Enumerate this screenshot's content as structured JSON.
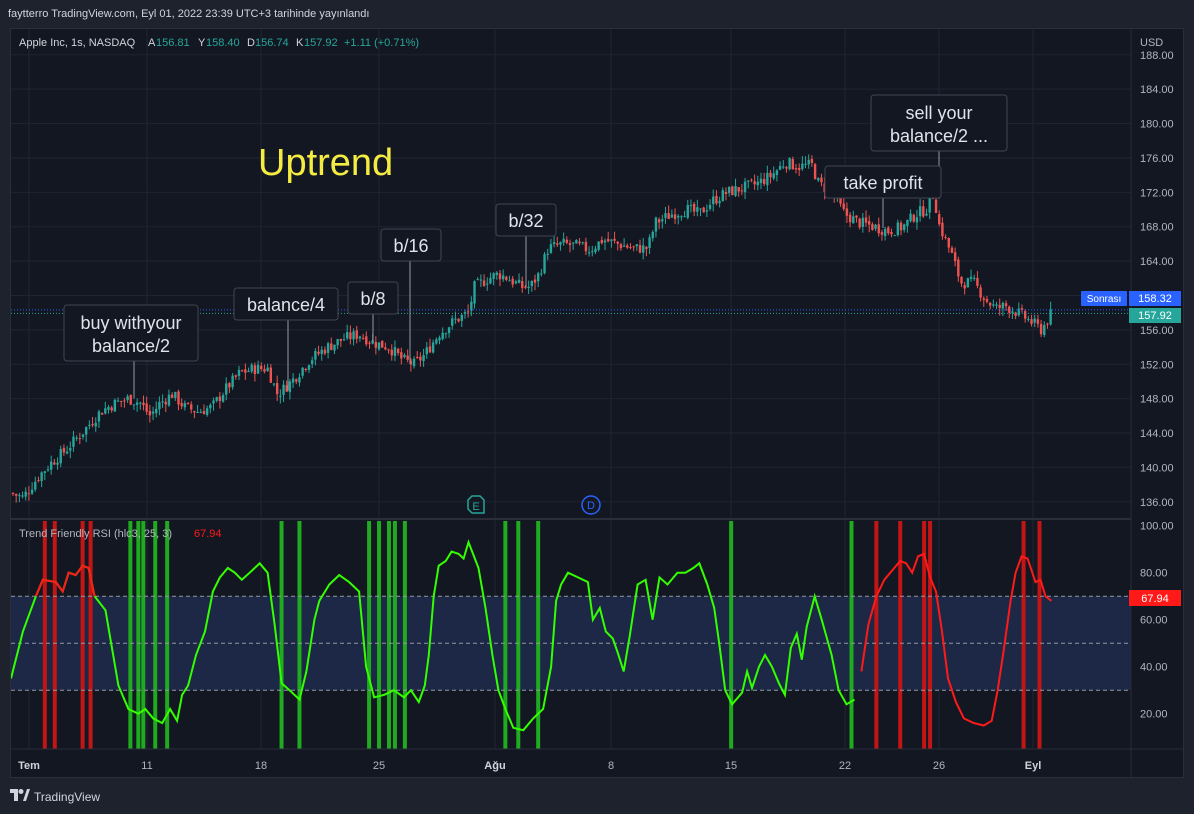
{
  "header": {
    "published": "faytterro TradingView.com, Eyl 01, 2022 23:39 UTC+3 tarihinde yayınlandı"
  },
  "legend": {
    "symbol": "Apple Inc, 1s, NASDAQ",
    "open_label": "A",
    "open": "156.81",
    "high_label": "Y",
    "high": "158.40",
    "low_label": "D",
    "low": "156.74",
    "close_label": "K",
    "close": "157.92",
    "change": "+1.11 (+0.71%)",
    "currency": "USD"
  },
  "annotations": {
    "uptrend": "Uptrend",
    "buy_line1": "buy withyour",
    "buy_line2": "balance/2",
    "balance4": "balance/4",
    "b8": "b/8",
    "b16": "b/16",
    "b32": "b/32",
    "take_profit": "take profit",
    "sell_line1": "sell your",
    "sell_line2": "balance/2 ..."
  },
  "price_labels": {
    "sonrasi": "Sonrası",
    "sonrasi_value": "158.32",
    "last_value": "157.92"
  },
  "markers": {
    "earnings": "E",
    "dividend": "D"
  },
  "indicator": {
    "title": "Trend Friendly RSI (hlc3, 25, 3)",
    "value": "67.94"
  },
  "footer": {
    "brand": "TradingView"
  },
  "colors": {
    "up": "#26a69a",
    "down": "#ef5350",
    "rsi_green": "#33ff00",
    "rsi_red": "#ff1a1a",
    "buy_band": "#1faa1f",
    "sell_band": "#c21515",
    "uptrend_text": "#f5ec42",
    "zone_fill": "#1c2846"
  },
  "chart_data": [
    {
      "type": "candlestick",
      "title": "Apple Inc, 1s, NASDAQ",
      "x_tick_labels": [
        "Tem",
        "11",
        "18",
        "25",
        "Ağu",
        "8",
        "15",
        "22",
        "26",
        "Eyl"
      ],
      "y_ticks": [
        136,
        140,
        144,
        148,
        152,
        156,
        160,
        164,
        168,
        172,
        176,
        180,
        184,
        188
      ],
      "ylim": [
        134,
        191
      ],
      "x_range": [
        0,
        1126
      ],
      "close_path": [
        [
          0,
          137
        ],
        [
          12,
          136.5
        ],
        [
          28,
          139
        ],
        [
          40,
          140.5
        ],
        [
          55,
          142
        ],
        [
          75,
          144.5
        ],
        [
          90,
          146.5
        ],
        [
          105,
          147.5
        ],
        [
          118,
          148
        ],
        [
          130,
          147.5
        ],
        [
          140,
          146
        ],
        [
          150,
          147.5
        ],
        [
          162,
          148.5
        ],
        [
          175,
          147
        ],
        [
          188,
          146.5
        ],
        [
          202,
          147
        ],
        [
          215,
          149
        ],
        [
          230,
          151
        ],
        [
          245,
          151.5
        ],
        [
          258,
          151.5
        ],
        [
          268,
          148.5
        ],
        [
          282,
          150
        ],
        [
          300,
          152.5
        ],
        [
          318,
          154
        ],
        [
          335,
          155
        ],
        [
          350,
          155.5
        ],
        [
          365,
          154.5
        ],
        [
          380,
          154
        ],
        [
          394,
          152.5
        ],
        [
          405,
          152
        ],
        [
          415,
          153
        ],
        [
          430,
          155.5
        ],
        [
          445,
          157
        ],
        [
          460,
          158
        ],
        [
          466,
          161
        ],
        [
          480,
          162
        ],
        [
          490,
          162.5
        ],
        [
          500,
          162
        ],
        [
          513,
          161
        ],
        [
          522,
          161
        ],
        [
          531,
          162.5
        ],
        [
          540,
          165.5
        ],
        [
          555,
          166
        ],
        [
          568,
          165.8
        ],
        [
          582,
          165.3
        ],
        [
          595,
          166.5
        ],
        [
          610,
          166
        ],
        [
          625,
          165.5
        ],
        [
          640,
          165.5
        ],
        [
          648,
          168.5
        ],
        [
          665,
          169.5
        ],
        [
          680,
          170
        ],
        [
          692,
          169.5
        ],
        [
          705,
          171
        ],
        [
          720,
          172
        ],
        [
          735,
          172.5
        ],
        [
          750,
          173
        ],
        [
          765,
          174
        ],
        [
          778,
          175.5
        ],
        [
          792,
          175
        ],
        [
          805,
          175.2
        ],
        [
          812,
          173
        ],
        [
          825,
          172
        ],
        [
          838,
          169.5
        ],
        [
          852,
          168.5
        ],
        [
          868,
          168
        ],
        [
          882,
          167.5
        ],
        [
          897,
          168
        ],
        [
          910,
          169.5
        ],
        [
          920,
          170
        ],
        [
          928,
          172
        ],
        [
          932,
          168.5
        ],
        [
          945,
          165
        ],
        [
          955,
          161.5
        ],
        [
          968,
          161.5
        ],
        [
          980,
          159.5
        ],
        [
          990,
          158.5
        ],
        [
          1000,
          158.8
        ],
        [
          1012,
          158
        ],
        [
          1025,
          157
        ],
        [
          1036,
          156
        ],
        [
          1046,
          157.9
        ]
      ],
      "last_price": 157.92,
      "reference_price": 158.32
    },
    {
      "type": "line",
      "title": "Trend Friendly RSI (hlc3, 25, 3)",
      "y_ticks": [
        20,
        40,
        60,
        80,
        100
      ],
      "ylim": [
        5,
        102
      ],
      "reference_levels": [
        30,
        50,
        70
      ],
      "zone": [
        30,
        70
      ],
      "last_value": 67.94,
      "x_range": [
        0,
        1126
      ],
      "red_from_x": 852,
      "values": [
        [
          0,
          35
        ],
        [
          12,
          55
        ],
        [
          25,
          70
        ],
        [
          32,
          77
        ],
        [
          45,
          76
        ],
        [
          52,
          72
        ],
        [
          58,
          80
        ],
        [
          65,
          79
        ],
        [
          72,
          83
        ],
        [
          78,
          82
        ],
        [
          84,
          70
        ],
        [
          95,
          64
        ],
        [
          108,
          32
        ],
        [
          118,
          22
        ],
        [
          128,
          20
        ],
        [
          135,
          22
        ],
        [
          143,
          18
        ],
        [
          152,
          16
        ],
        [
          160,
          22
        ],
        [
          167,
          17
        ],
        [
          172,
          28
        ],
        [
          178,
          32
        ],
        [
          186,
          45
        ],
        [
          195,
          55
        ],
        [
          203,
          72
        ],
        [
          210,
          78
        ],
        [
          218,
          82
        ],
        [
          225,
          80
        ],
        [
          232,
          77
        ],
        [
          240,
          80
        ],
        [
          250,
          84
        ],
        [
          258,
          80
        ],
        [
          265,
          58
        ],
        [
          272,
          33
        ],
        [
          280,
          30
        ],
        [
          290,
          26
        ],
        [
          297,
          38
        ],
        [
          305,
          60
        ],
        [
          310,
          68
        ],
        [
          320,
          75
        ],
        [
          330,
          79
        ],
        [
          340,
          76
        ],
        [
          350,
          72
        ],
        [
          357,
          40
        ],
        [
          365,
          27
        ],
        [
          375,
          28
        ],
        [
          385,
          30
        ],
        [
          395,
          27
        ],
        [
          402,
          30
        ],
        [
          410,
          25
        ],
        [
          416,
          32
        ],
        [
          420,
          45
        ],
        [
          425,
          70
        ],
        [
          430,
          83
        ],
        [
          437,
          85
        ],
        [
          443,
          89
        ],
        [
          450,
          88
        ],
        [
          455,
          86
        ],
        [
          460,
          93
        ],
        [
          470,
          82
        ],
        [
          477,
          65
        ],
        [
          484,
          45
        ],
        [
          490,
          30
        ],
        [
          497,
          22
        ],
        [
          505,
          14
        ],
        [
          515,
          13
        ],
        [
          525,
          18
        ],
        [
          535,
          22
        ],
        [
          543,
          40
        ],
        [
          548,
          68
        ],
        [
          553,
          75
        ],
        [
          560,
          80
        ],
        [
          570,
          78
        ],
        [
          580,
          76
        ],
        [
          585,
          60
        ],
        [
          592,
          65
        ],
        [
          598,
          55
        ],
        [
          605,
          52
        ],
        [
          610,
          46
        ],
        [
          616,
          38
        ],
        [
          622,
          53
        ],
        [
          630,
          75
        ],
        [
          638,
          77
        ],
        [
          645,
          60
        ],
        [
          652,
          78
        ],
        [
          660,
          75
        ],
        [
          670,
          80
        ],
        [
          678,
          80
        ],
        [
          686,
          82
        ],
        [
          692,
          84
        ],
        [
          700,
          75
        ],
        [
          707,
          65
        ],
        [
          712,
          50
        ],
        [
          718,
          30
        ],
        [
          725,
          24
        ],
        [
          735,
          29
        ],
        [
          740,
          38
        ],
        [
          745,
          31
        ],
        [
          752,
          40
        ],
        [
          758,
          45
        ],
        [
          765,
          40
        ],
        [
          772,
          33
        ],
        [
          778,
          28
        ],
        [
          784,
          48
        ],
        [
          790,
          54
        ],
        [
          795,
          43
        ],
        [
          800,
          57
        ],
        [
          808,
          70
        ],
        [
          815,
          60
        ],
        [
          825,
          45
        ],
        [
          832,
          30
        ],
        [
          840,
          24
        ],
        [
          848,
          26
        ],
        [
          855,
          38
        ],
        [
          862,
          58
        ],
        [
          870,
          70
        ],
        [
          878,
          77
        ],
        [
          886,
          81
        ],
        [
          894,
          85
        ],
        [
          900,
          84
        ],
        [
          906,
          80
        ],
        [
          912,
          87
        ],
        [
          918,
          88
        ],
        [
          924,
          78
        ],
        [
          930,
          72
        ],
        [
          936,
          55
        ],
        [
          942,
          35
        ],
        [
          950,
          25
        ],
        [
          958,
          18
        ],
        [
          968,
          16
        ],
        [
          978,
          15
        ],
        [
          986,
          17
        ],
        [
          992,
          30
        ],
        [
          998,
          47
        ],
        [
          1005,
          68
        ],
        [
          1010,
          80
        ],
        [
          1016,
          87
        ],
        [
          1022,
          86
        ],
        [
          1030,
          76
        ],
        [
          1035,
          77
        ],
        [
          1040,
          70
        ],
        [
          1046,
          68
        ]
      ],
      "buy_bands_x": [
        120,
        128,
        133,
        145,
        157,
        272,
        290,
        360,
        370,
        380,
        386,
        396,
        497,
        510,
        530,
        724,
        845
      ],
      "sell_bands_x": [
        34,
        44,
        72,
        80,
        870,
        894,
        918,
        924,
        1018,
        1034
      ]
    }
  ]
}
